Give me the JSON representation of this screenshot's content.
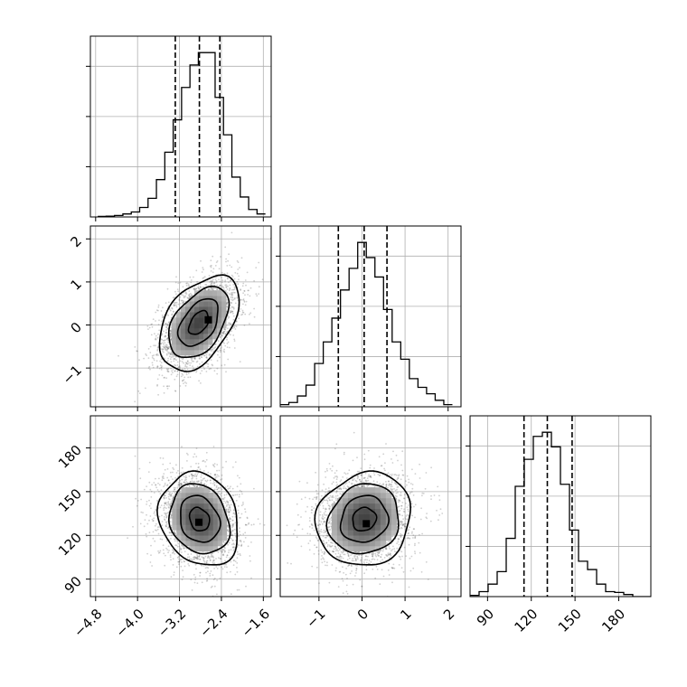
{
  "chart_data": {
    "type": "corner",
    "parameters": [
      {
        "index": 0,
        "range": [
          -4.9,
          -1.45
        ],
        "ticks": [
          -4.8,
          -4.0,
          -3.2,
          -2.4,
          -1.6
        ],
        "tick_labels": [
          "−4.8",
          "−4.0",
          "−3.2",
          "−2.4",
          "−1.6"
        ],
        "quantiles": [
          -3.28,
          -2.82,
          -2.43
        ],
        "histogram": {
          "bin_edges": [
            -4.76,
            -4.6,
            -4.44,
            -4.28,
            -4.12,
            -3.96,
            -3.8,
            -3.64,
            -3.48,
            -3.32,
            -3.16,
            -3.0,
            -2.84,
            -2.68,
            -2.52,
            -2.36,
            -2.2,
            -2.04,
            -1.88,
            -1.72,
            -1.56
          ],
          "counts": [
            2,
            3,
            6,
            12,
            20,
            38,
            75,
            150,
            260,
            390,
            520,
            610,
            660,
            660,
            480,
            330,
            160,
            80,
            30,
            12
          ]
        }
      },
      {
        "index": 1,
        "range": [
          -1.9,
          2.3
        ],
        "ticks": [
          -1,
          0,
          1,
          2
        ],
        "tick_labels": [
          "−1",
          "0",
          "1",
          "2"
        ],
        "quantiles": [
          -0.55,
          0.05,
          0.58
        ],
        "histogram": {
          "bin_edges": [
            -1.9,
            -1.7,
            -1.5,
            -1.3,
            -1.1,
            -0.9,
            -0.7,
            -0.5,
            -0.3,
            -0.1,
            0.1,
            0.3,
            0.5,
            0.7,
            0.9,
            1.1,
            1.3,
            1.5,
            1.7,
            1.9,
            2.1
          ],
          "counts": [
            5,
            10,
            25,
            50,
            100,
            150,
            205,
            270,
            320,
            380,
            345,
            300,
            225,
            150,
            110,
            65,
            45,
            30,
            15,
            5
          ]
        }
      },
      {
        "index": 2,
        "range": [
          78,
          202
        ],
        "ticks": [
          90,
          120,
          150,
          180
        ],
        "tick_labels": [
          "90",
          "120",
          "150",
          "180"
        ],
        "quantiles": [
          115,
          131,
          148
        ],
        "histogram": {
          "bin_edges": [
            78,
            84.2,
            90.4,
            96.6,
            102.8,
            109,
            115.2,
            121.4,
            127.6,
            133.8,
            140,
            146.2,
            152.4,
            158.6,
            164.8,
            171,
            177.2,
            183.4,
            189.6,
            195.8,
            202
          ],
          "counts": [
            3,
            12,
            30,
            60,
            140,
            265,
            330,
            385,
            395,
            360,
            270,
            160,
            85,
            65,
            30,
            12,
            10,
            5,
            0,
            0
          ]
        }
      }
    ],
    "pairs": [
      {
        "x_param": 0,
        "y_param": 1,
        "center": [
          -2.83,
          0.05
        ],
        "sigma": [
          0.38,
          0.55
        ],
        "rho": 0.45,
        "contour_levels_sigma": [
          0.5,
          1.0,
          1.5,
          2.0
        ],
        "peak": [
          -2.65,
          0.12
        ]
      },
      {
        "x_param": 0,
        "y_param": 2,
        "center": [
          -2.82,
          131
        ],
        "sigma": [
          0.38,
          16
        ],
        "rho": -0.18,
        "contour_levels_sigma": [
          0.5,
          1.0,
          1.5,
          2.0
        ],
        "peak": [
          -2.83,
          129
        ]
      },
      {
        "x_param": 1,
        "y_param": 2,
        "center": [
          0.05,
          131
        ],
        "sigma": [
          0.55,
          16
        ],
        "rho": 0.1,
        "contour_levels_sigma": [
          0.5,
          1.0,
          1.5,
          2.0
        ],
        "peak": [
          0.1,
          128
        ]
      }
    ],
    "grid": true,
    "title": "",
    "xlabel": "",
    "ylabel": "",
    "colors": {
      "line": "#000000",
      "grid": "#b0b0b0",
      "points": "#555555"
    }
  }
}
